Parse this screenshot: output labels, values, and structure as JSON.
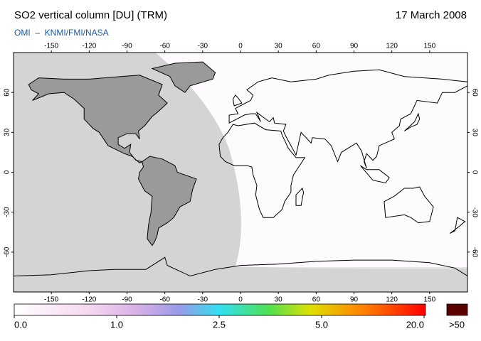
{
  "title": "SO2 vertical column [DU] (TRM)",
  "date": "17 March 2008",
  "source": "OMI  –  KNMI/FMI/NASA",
  "map": {
    "lonlim": [
      -180,
      180
    ],
    "latlim": [
      -90,
      90
    ],
    "lonticks": [
      -150,
      -120,
      -90,
      -60,
      -30,
      0,
      30,
      60,
      90,
      120,
      150
    ],
    "latticks": [
      60,
      30,
      0,
      -30,
      -60
    ]
  },
  "colorbar": {
    "ticks": [
      {
        "value": 0,
        "label": "0.0"
      },
      {
        "value": 1,
        "label": "1.0"
      },
      {
        "value": 2.5,
        "label": "2.5"
      },
      {
        "value": 5,
        "label": "5.0"
      },
      {
        "value": 20,
        "label": "20.0"
      }
    ],
    "overflow_label": ">50",
    "overflow_color": "#5a0000"
  }
}
